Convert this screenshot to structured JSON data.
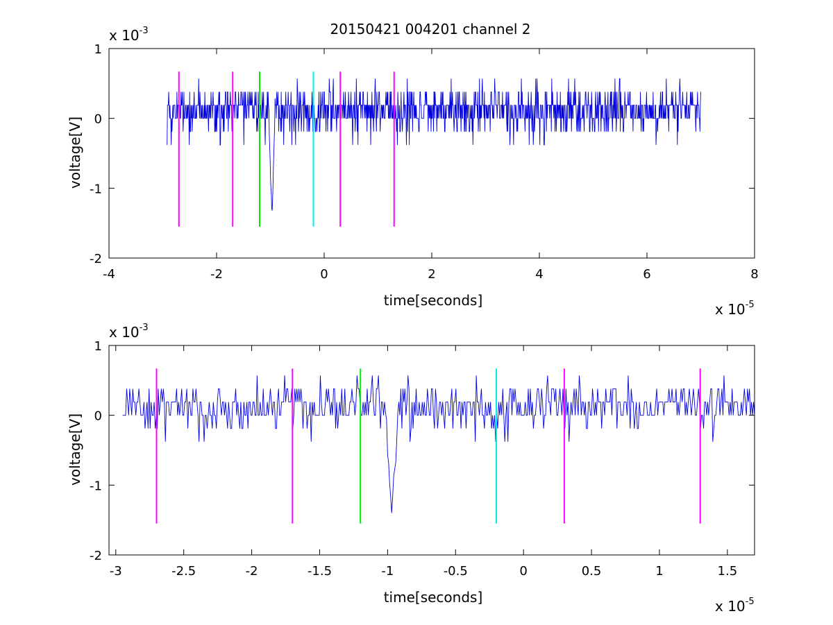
{
  "figure": {
    "title": "20150421 004201 channel 2"
  },
  "colors": {
    "signal": "#0000dd",
    "magenta": "#ff00ff",
    "green": "#00ee00",
    "cyan": "#00eeee",
    "axes": "#000000"
  },
  "chart_data": [
    {
      "type": "line",
      "xlabel": "time[seconds]",
      "ylabel": "voltage[V]",
      "x_multiplier": "x 10",
      "x_exponent": "-5",
      "y_multiplier": "x 10",
      "y_exponent": "-3",
      "xlim": [
        -4,
        8
      ],
      "ylim": [
        -2,
        1
      ],
      "x_ticks": [
        -4,
        -2,
        0,
        2,
        4,
        6,
        8
      ],
      "x_tick_labels": [
        "-4",
        "-2",
        "0",
        "2",
        "4",
        "6",
        "8"
      ],
      "y_ticks": [
        -2,
        -1,
        0,
        1
      ],
      "y_tick_labels": [
        "-2",
        "-1",
        "0",
        "1"
      ],
      "signal": {
        "x_range": [
          -2.92,
          7.0
        ],
        "baseline": 0.0,
        "step": 0.19,
        "spike": {
          "x": -0.97,
          "y": -1.4
        }
      },
      "markers": [
        {
          "x": -2.7,
          "color": "magenta",
          "y_range": [
            -1.55,
            0.67
          ]
        },
        {
          "x": -1.7,
          "color": "magenta",
          "y_range": [
            -1.55,
            0.67
          ]
        },
        {
          "x": -1.2,
          "color": "green",
          "y_range": [
            -1.55,
            0.67
          ]
        },
        {
          "x": -0.2,
          "color": "cyan",
          "y_range": [
            -1.55,
            0.67
          ]
        },
        {
          "x": 0.3,
          "color": "magenta",
          "y_range": [
            -1.55,
            0.67
          ]
        },
        {
          "x": 1.3,
          "color": "magenta",
          "y_range": [
            -1.55,
            0.67
          ]
        }
      ],
      "grid": false
    },
    {
      "type": "line",
      "xlabel": "time[seconds]",
      "ylabel": "voltage[V]",
      "x_multiplier": "x 10",
      "x_exponent": "-5",
      "y_multiplier": "x 10",
      "y_exponent": "-3",
      "xlim": [
        -3.05,
        1.7
      ],
      "ylim": [
        -2,
        1
      ],
      "x_ticks": [
        -3,
        -2.5,
        -2,
        -1.5,
        -1,
        -0.5,
        0,
        0.5,
        1,
        1.5
      ],
      "x_tick_labels": [
        "-3",
        "-2.5",
        "-2",
        "-1.5",
        "-1",
        "-0.5",
        "0",
        "0.5",
        "1",
        "1.5"
      ],
      "y_ticks": [
        -2,
        -1,
        0,
        1
      ],
      "y_tick_labels": [
        "-2",
        "-1",
        "0",
        "1"
      ],
      "signal": {
        "x_range": [
          -2.95,
          1.7
        ],
        "baseline": 0.0,
        "step": 0.19,
        "spike": {
          "x": -0.97,
          "y": -1.4
        }
      },
      "markers": [
        {
          "x": -2.7,
          "color": "magenta",
          "y_range": [
            -1.55,
            0.67
          ]
        },
        {
          "x": -1.7,
          "color": "magenta",
          "y_range": [
            -1.55,
            0.67
          ]
        },
        {
          "x": -1.2,
          "color": "green",
          "y_range": [
            -1.55,
            0.67
          ]
        },
        {
          "x": -0.2,
          "color": "cyan",
          "y_range": [
            -1.55,
            0.67
          ]
        },
        {
          "x": 0.3,
          "color": "magenta",
          "y_range": [
            -1.55,
            0.67
          ]
        },
        {
          "x": 1.3,
          "color": "magenta",
          "y_range": [
            -1.55,
            0.67
          ]
        }
      ],
      "grid": false
    }
  ]
}
